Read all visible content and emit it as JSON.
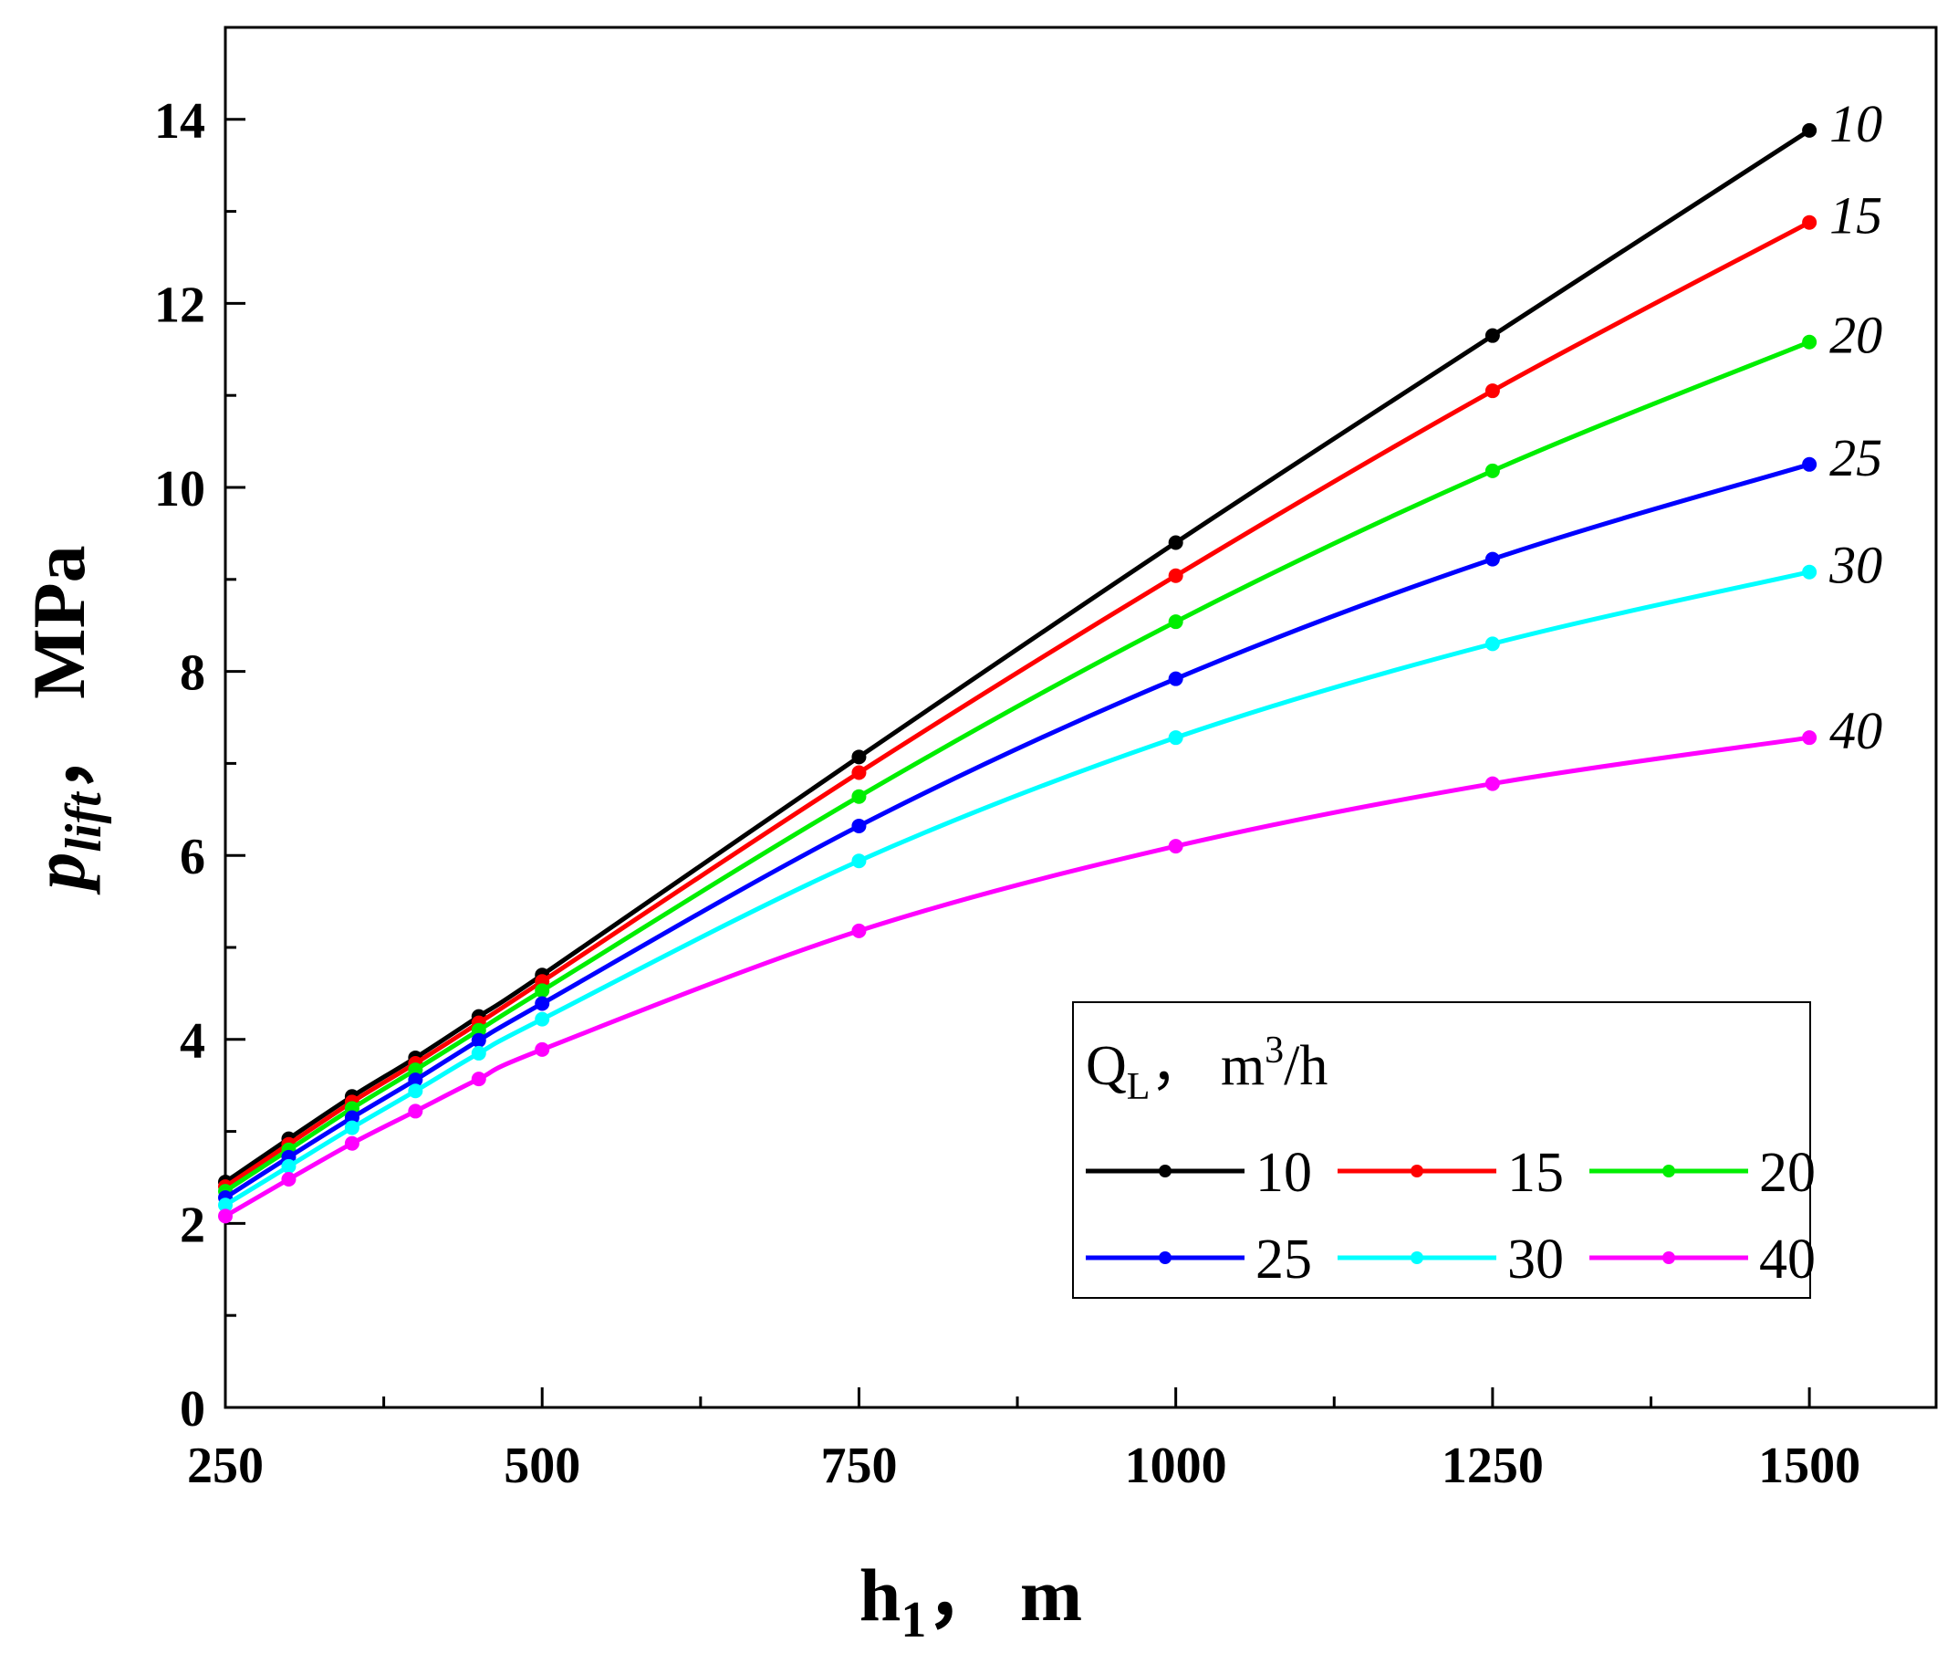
{
  "chart_data": {
    "type": "line",
    "xlabel": {
      "main": "h",
      "sub": "1",
      "unit": "，  m"
    },
    "ylabel": {
      "main": "p",
      "sub": "lift",
      "unit": "，  MPa"
    },
    "xlim": [
      250,
      1600
    ],
    "ylim": [
      0,
      15
    ],
    "xticks": [
      250,
      500,
      750,
      1000,
      1250,
      1500
    ],
    "yticks": [
      0,
      2,
      4,
      6,
      8,
      10,
      12,
      14
    ],
    "grid": false,
    "legend": {
      "position": "bottom-right",
      "title": {
        "main": "Q",
        "sub": "L",
        "mid": "，  m",
        "sup": "3",
        "tail": "/h"
      }
    },
    "x": [
      250,
      300,
      350,
      400,
      450,
      500,
      750,
      1000,
      1250,
      1500
    ],
    "series": [
      {
        "name": "10",
        "color": "#000000",
        "values": [
          2.45,
          2.92,
          3.38,
          3.8,
          4.25,
          4.7,
          7.07,
          9.4,
          11.65,
          13.88
        ]
      },
      {
        "name": "15",
        "color": "#ff0000",
        "values": [
          2.4,
          2.86,
          3.32,
          3.74,
          4.18,
          4.63,
          6.9,
          9.04,
          11.05,
          12.88
        ]
      },
      {
        "name": "20",
        "color": "#00ee00",
        "values": [
          2.35,
          2.8,
          3.25,
          3.67,
          4.1,
          4.53,
          6.64,
          8.54,
          10.18,
          11.58
        ]
      },
      {
        "name": "25",
        "color": "#0000ff",
        "values": [
          2.28,
          2.72,
          3.15,
          3.56,
          3.99,
          4.39,
          6.32,
          7.92,
          9.22,
          10.25
        ]
      },
      {
        "name": "30",
        "color": "#00ffff",
        "values": [
          2.2,
          2.62,
          3.04,
          3.44,
          3.85,
          4.22,
          5.94,
          7.28,
          8.3,
          9.08
        ]
      },
      {
        "name": "40",
        "color": "#ff00ff",
        "values": [
          2.08,
          2.48,
          2.87,
          3.22,
          3.57,
          3.89,
          5.18,
          6.1,
          6.78,
          7.28
        ]
      }
    ]
  }
}
